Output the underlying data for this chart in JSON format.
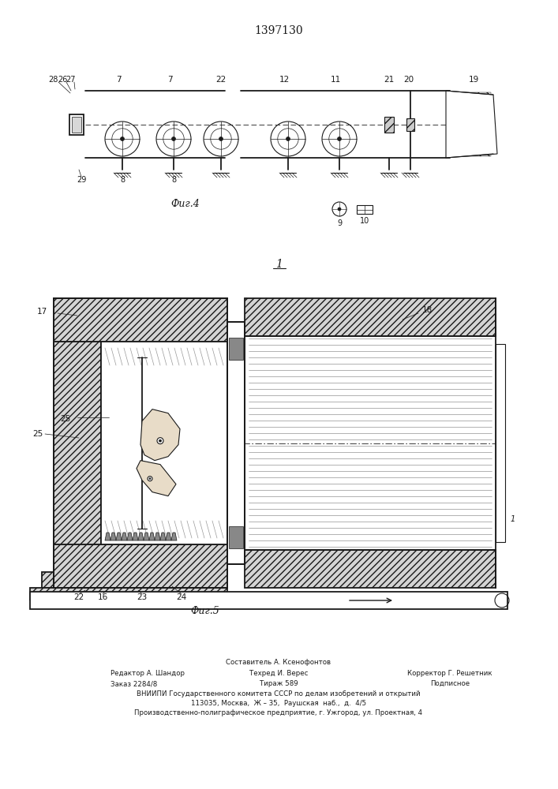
{
  "title": "1397130",
  "bg_color": "#ffffff",
  "fig_width": 7.07,
  "fig_height": 10.0,
  "fig4_label": "Фиг.4",
  "fig5_label": "Фиг.5",
  "fig1_label": "1",
  "black": "#1a1a1a",
  "gray_hatch": "#b0b0b0",
  "footer": {
    "col1": [
      "Редактор А. Шандор",
      "Заказ 2284/8"
    ],
    "col2_header": "Составитель А. Ксенофонтов",
    "col2": [
      "Техред И. Верес",
      "Тираж 589"
    ],
    "col3": [
      "Корректор Г. Решетник",
      "Подписное"
    ],
    "line3": "ВНИИПИ Государственного комитета СССР по делам изобретений и открытий",
    "line4": "113035, Москва,  Ж – 35,  Раушская  наб.,  д.  4/5",
    "line5": "Производственно-полиграфическое предприятие, г. Ужгород, ул. Проектная, 4"
  }
}
